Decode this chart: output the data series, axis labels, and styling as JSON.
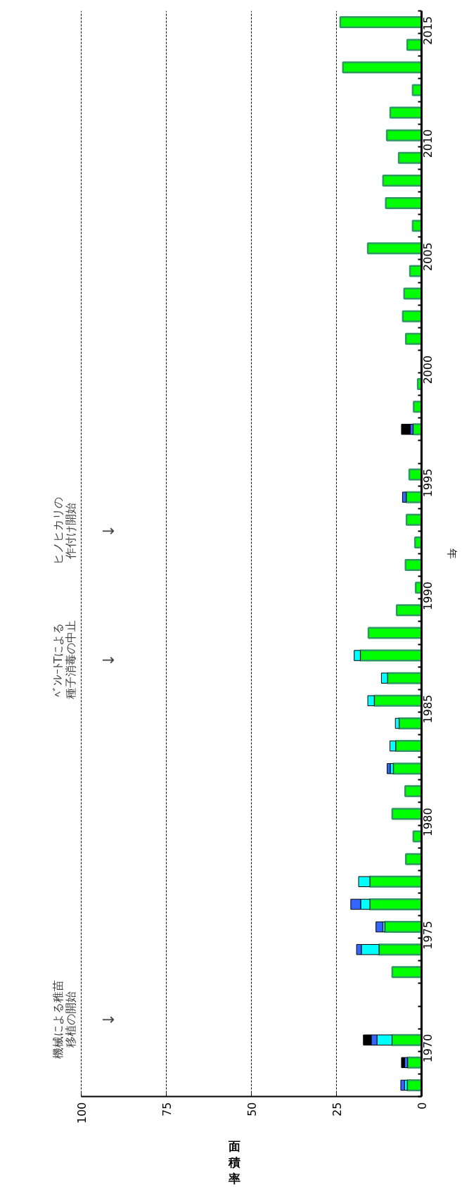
{
  "chart_data": {
    "type": "bar",
    "orientation": "horizontal",
    "stacked": true,
    "categories": [
      null,
      "2015",
      null,
      null,
      null,
      null,
      "2010",
      null,
      null,
      null,
      null,
      "2005",
      null,
      null,
      null,
      null,
      "2000",
      null,
      null,
      null,
      null,
      "1995",
      null,
      null,
      null,
      null,
      "1990",
      null,
      null,
      null,
      null,
      "1985",
      null,
      null,
      null,
      null,
      "1980",
      null,
      null,
      null,
      null,
      "1975",
      null,
      null,
      null,
      null,
      "1970",
      null
    ],
    "series": [
      {
        "color": "#00ff00",
        "values": [
          23.9,
          4.2,
          23.1,
          2.6,
          9.2,
          10.2,
          6.7,
          11.3,
          10.5,
          2.6,
          15.8,
          3.4,
          5.1,
          5.5,
          4.6,
          null,
          1.1,
          2.3,
          2.5,
          null,
          3.6,
          4.5,
          4.4,
          1.9,
          4.7,
          1.7,
          7.3,
          15.6,
          18.0,
          10.0,
          13.9,
          6.6,
          7.6,
          8.3,
          4.8,
          8.6,
          2.4,
          4.6,
          15.2,
          15.2,
          10.8,
          12.5,
          8.6,
          null,
          null,
          8.7,
          4.1,
          4.2
        ]
      },
      {
        "color": "#00ffff",
        "values": [
          null,
          null,
          null,
          null,
          null,
          null,
          null,
          null,
          null,
          null,
          null,
          null,
          null,
          null,
          null,
          null,
          null,
          null,
          null,
          null,
          null,
          null,
          null,
          null,
          null,
          null,
          null,
          null,
          1.8,
          1.8,
          1.9,
          1.1,
          1.7,
          0.9,
          null,
          null,
          null,
          null,
          3.3,
          2.7,
          0.6,
          5.2,
          null,
          null,
          null,
          4.4,
          null,
          0.8
        ]
      },
      {
        "color": "#3366ff",
        "values": [
          null,
          null,
          null,
          null,
          null,
          null,
          null,
          null,
          null,
          null,
          null,
          null,
          null,
          null,
          null,
          null,
          null,
          null,
          0.8,
          null,
          null,
          1.1,
          null,
          null,
          null,
          null,
          null,
          null,
          null,
          null,
          null,
          null,
          null,
          0.9,
          null,
          null,
          null,
          null,
          null,
          2.9,
          2.0,
          1.4,
          null,
          null,
          null,
          1.7,
          0.9,
          1.1
        ]
      },
      {
        "color": "#000000",
        "values": [
          null,
          null,
          null,
          null,
          null,
          null,
          null,
          null,
          null,
          null,
          null,
          null,
          null,
          null,
          null,
          null,
          null,
          null,
          2.6,
          null,
          null,
          null,
          null,
          null,
          null,
          null,
          null,
          null,
          null,
          null,
          null,
          null,
          null,
          null,
          null,
          null,
          null,
          null,
          null,
          null,
          null,
          null,
          null,
          null,
          null,
          2.3,
          0.9,
          null
        ]
      }
    ],
    "xlim": [
      100,
      0
    ],
    "xticks": [
      0,
      25,
      50,
      75,
      100
    ],
    "xlabel": "面積率",
    "ylabel": "年",
    "grid": "x",
    "annotations": [
      "機械による稚苗",
      "移植の開始",
      "↓",
      "ﾍﾞﾝﾚｰﾄTによる",
      "種子消毒の中止",
      "↓",
      "ヒノヒカリの",
      "作付け開始",
      "↓"
    ]
  }
}
